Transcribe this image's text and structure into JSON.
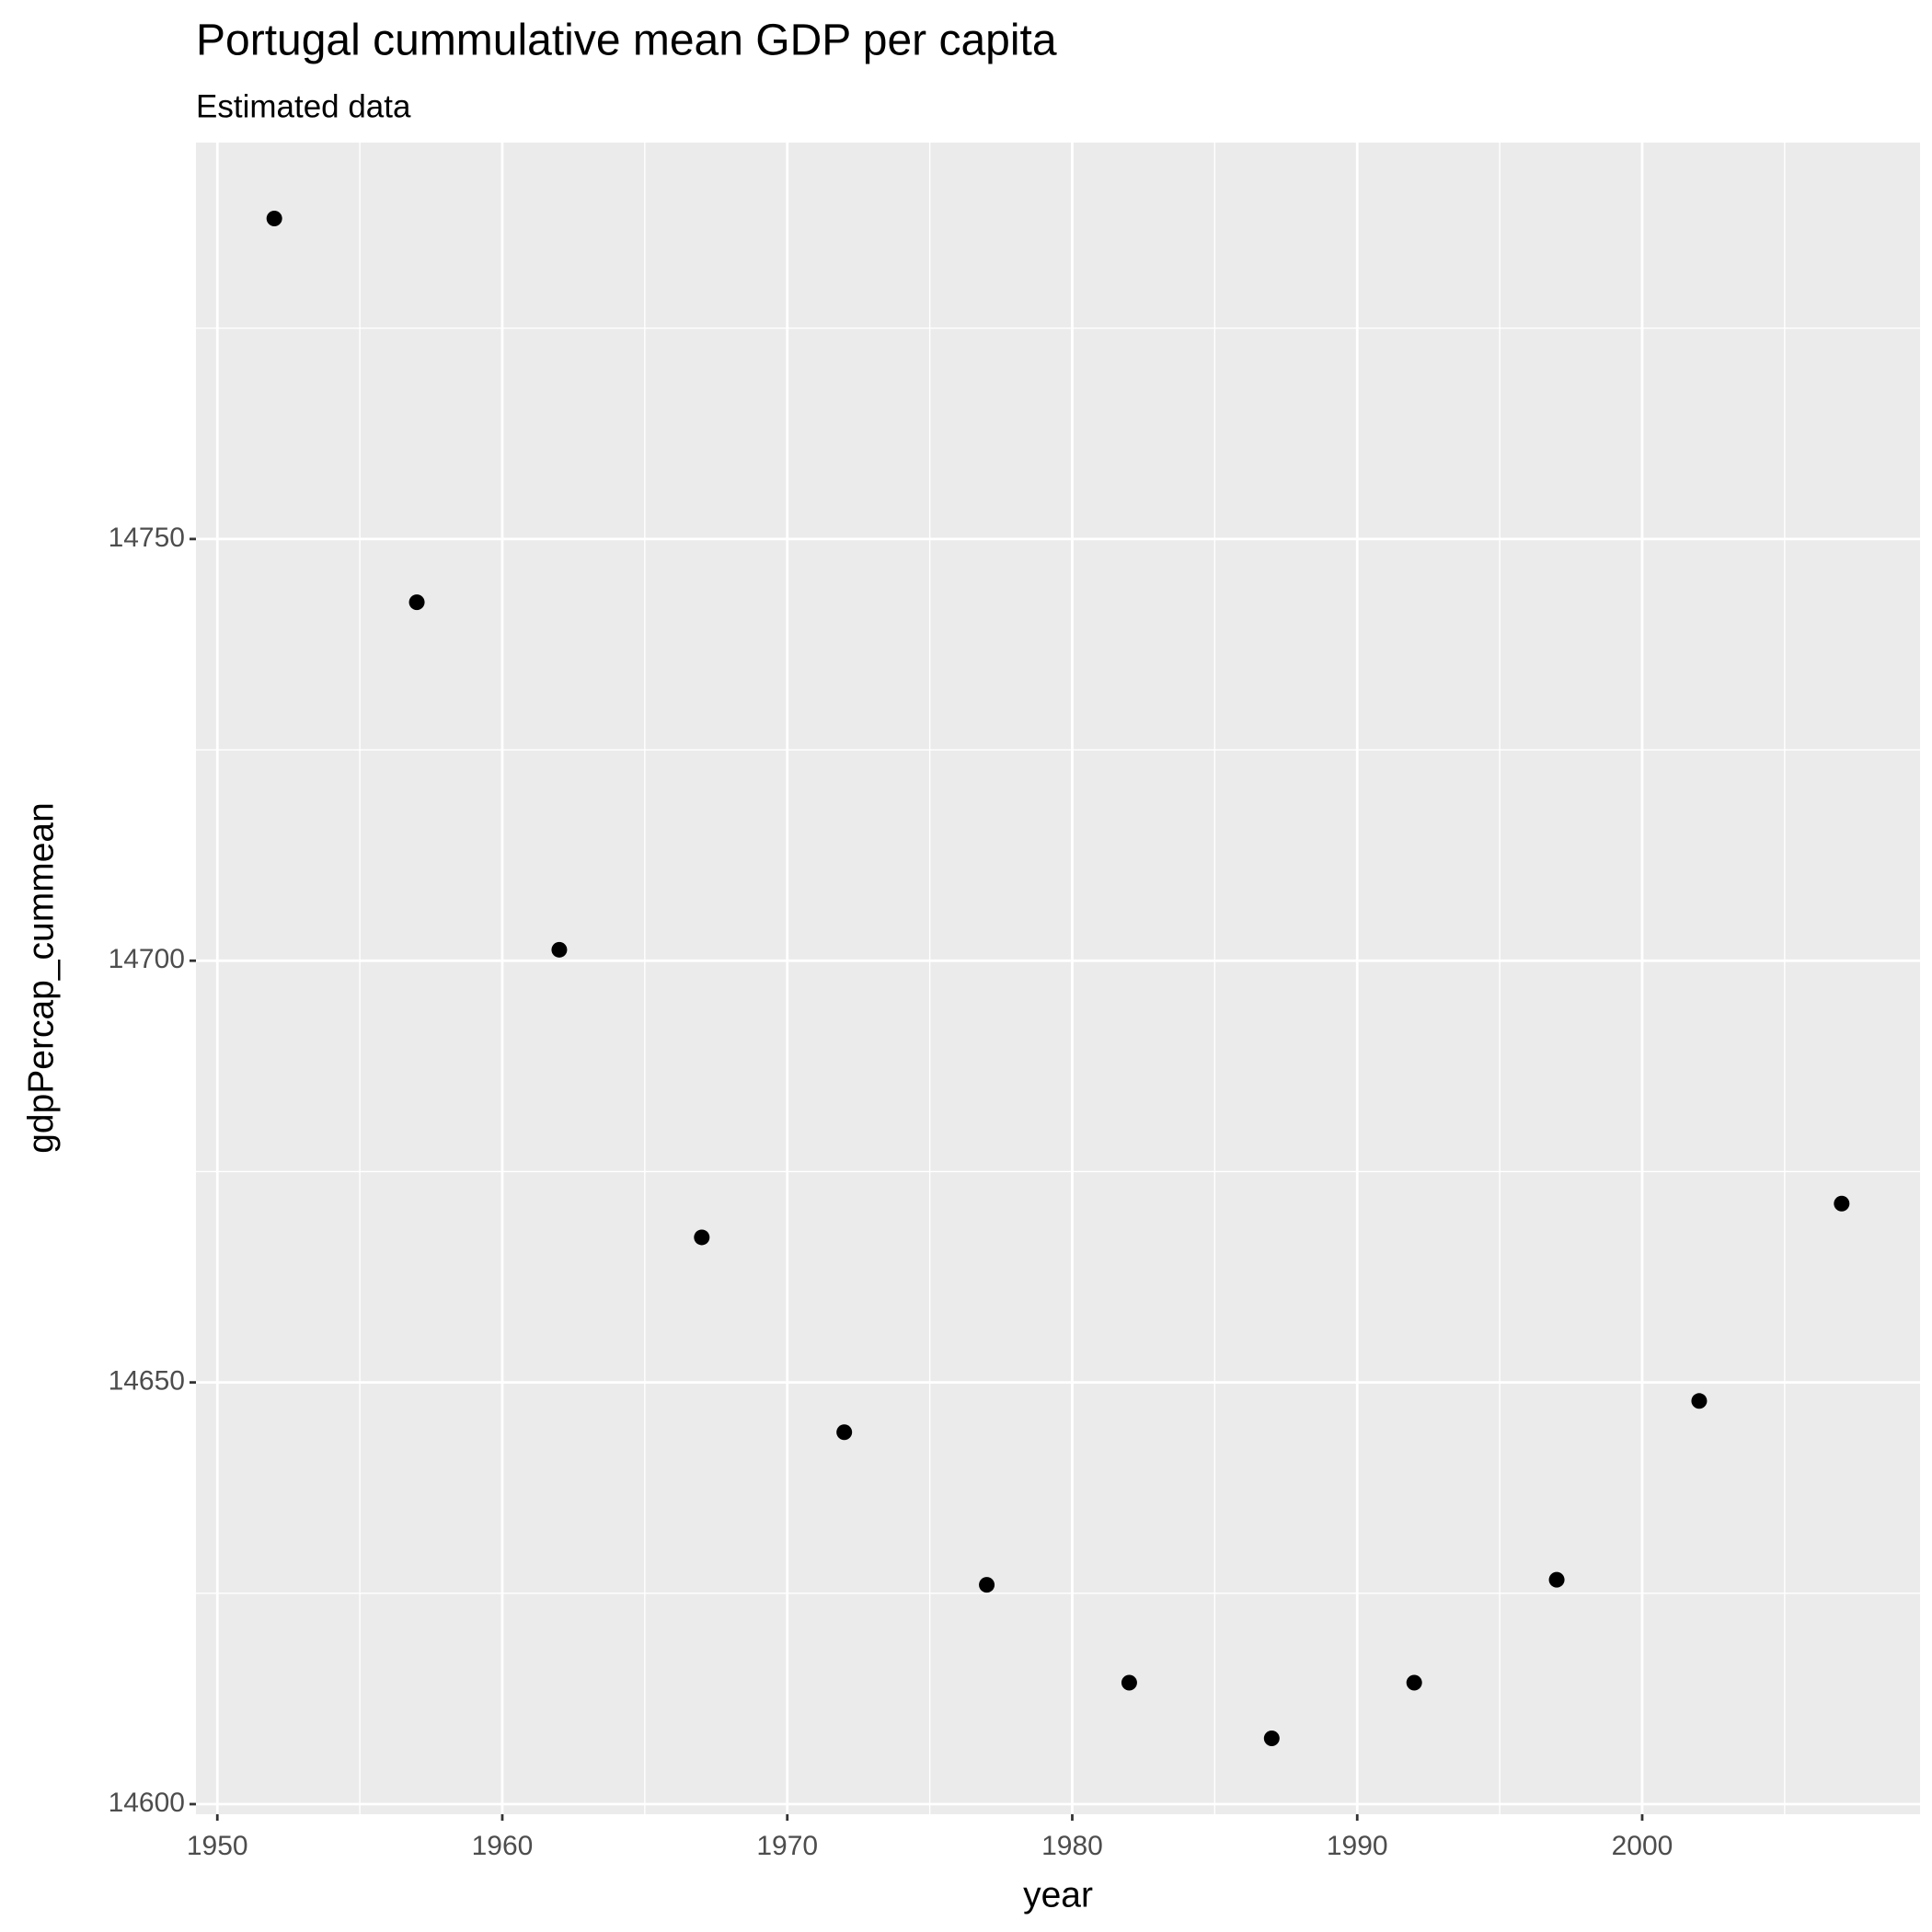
{
  "chart_data": {
    "type": "scatter",
    "title": "Portugal  cummulative mean GDP per capita",
    "subtitle": "Estimated data",
    "x_label": "year",
    "y_label": "gdpPercap_cummean",
    "series": [
      {
        "name": "gdpPercap_cummean",
        "color": "#000000",
        "x": [
          1952,
          1957,
          1962,
          1967,
          1972,
          1977,
          1982,
          1987,
          1992,
          1997,
          2002,
          2007
        ],
        "values": [
          14788.0,
          14742.5,
          14701.3,
          14667.2,
          14644.1,
          14626.0,
          14614.4,
          14607.8,
          14614.4,
          14626.6,
          14647.8,
          14671.2
        ]
      }
    ],
    "xlim": [
      1949.25,
      2009.75
    ],
    "xticks": [
      1950,
      1960,
      1970,
      1980,
      1990,
      2000
    ],
    "ylim": [
      14598.8,
      14797.0
    ],
    "yticks": [
      14600,
      14650,
      14700,
      14750
    ],
    "grid": true
  }
}
